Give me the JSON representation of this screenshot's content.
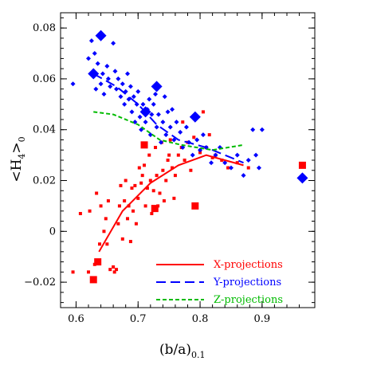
{
  "chart_data": {
    "type": "scatter",
    "xlabel": "(b/a)",
    "xlabel_sub": "0.1",
    "ylabel": "<H",
    "ylabel_sub1": "4",
    "ylabel_close": ">",
    "ylabel_sub2": "0",
    "xlim": [
      0.575,
      0.985
    ],
    "ylim": [
      -0.03,
      0.086
    ],
    "xticks": [
      0.6,
      0.7,
      0.8,
      0.9
    ],
    "xtick_labels": [
      "0.6",
      "0.7",
      "0.8",
      "0.9"
    ],
    "yticks": [
      -0.02,
      0,
      0.02,
      0.04,
      0.06,
      0.08
    ],
    "ytick_labels": [
      "−0.02",
      "0",
      "0.02",
      "0.04",
      "0.06",
      "0.08"
    ],
    "colors": {
      "x": "#ff0000",
      "y": "#0000ff",
      "z": "#00bb00"
    },
    "legend_position": "bottom-right",
    "series": [
      {
        "name": "X-projections",
        "color": "#ff0000",
        "marker": "square",
        "line_style": "solid",
        "line": [
          [
            0.637,
            -0.008
          ],
          [
            0.675,
            0.008
          ],
          [
            0.72,
            0.019
          ],
          [
            0.765,
            0.026
          ],
          [
            0.81,
            0.03
          ],
          [
            0.87,
            0.026
          ]
        ],
        "points": [
          [
            0.595,
            -0.016
          ],
          [
            0.607,
            0.007
          ],
          [
            0.62,
            -0.016
          ],
          [
            0.622,
            0.008
          ],
          [
            0.63,
            -0.013
          ],
          [
            0.633,
            0.015
          ],
          [
            0.638,
            -0.005
          ],
          [
            0.64,
            0.01
          ],
          [
            0.645,
            0.0
          ],
          [
            0.648,
            0.005
          ],
          [
            0.65,
            -0.005
          ],
          [
            0.652,
            0.012
          ],
          [
            0.655,
            -0.015
          ],
          [
            0.66,
            -0.014
          ],
          [
            0.662,
            -0.016
          ],
          [
            0.665,
            -0.015
          ],
          [
            0.668,
            0.003
          ],
          [
            0.67,
            0.01
          ],
          [
            0.672,
            0.018
          ],
          [
            0.675,
            -0.003
          ],
          [
            0.678,
            0.012
          ],
          [
            0.68,
            0.02
          ],
          [
            0.683,
            0.005
          ],
          [
            0.685,
            0.01
          ],
          [
            0.688,
            -0.004
          ],
          [
            0.69,
            0.017
          ],
          [
            0.692,
            0.008
          ],
          [
            0.695,
            0.018
          ],
          [
            0.697,
            0.003
          ],
          [
            0.7,
            0.013
          ],
          [
            0.702,
            0.025
          ],
          [
            0.705,
            0.019
          ],
          [
            0.707,
            0.022
          ],
          [
            0.71,
            0.026
          ],
          [
            0.712,
            0.01
          ],
          [
            0.715,
            0.017
          ],
          [
            0.718,
            0.03
          ],
          [
            0.72,
            0.02
          ],
          [
            0.722,
            0.007
          ],
          [
            0.725,
            0.016
          ],
          [
            0.728,
            0.033
          ],
          [
            0.73,
            0.022
          ],
          [
            0.732,
            0.01
          ],
          [
            0.735,
            0.015
          ],
          [
            0.738,
            0.035
          ],
          [
            0.74,
            0.024
          ],
          [
            0.742,
            0.012
          ],
          [
            0.745,
            0.02
          ],
          [
            0.748,
            0.028
          ],
          [
            0.75,
            0.03
          ],
          [
            0.752,
            0.036
          ],
          [
            0.755,
            0.025
          ],
          [
            0.758,
            0.013
          ],
          [
            0.76,
            0.022
          ],
          [
            0.765,
            0.03
          ],
          [
            0.77,
            0.033
          ],
          [
            0.772,
            0.043
          ],
          [
            0.775,
            0.028
          ],
          [
            0.78,
            0.035
          ],
          [
            0.785,
            0.024
          ],
          [
            0.79,
            0.037
          ],
          [
            0.8,
            0.031
          ],
          [
            0.805,
            0.047
          ],
          [
            0.81,
            0.033
          ],
          [
            0.815,
            0.038
          ],
          [
            0.82,
            0.029
          ],
          [
            0.825,
            0.03
          ],
          [
            0.835,
            0.028
          ],
          [
            0.845,
            0.025
          ],
          [
            0.86,
            0.027
          ],
          [
            0.878,
            0.025
          ]
        ],
        "big_points": [
          [
            0.628,
            -0.019
          ],
          [
            0.635,
            -0.012
          ],
          [
            0.71,
            0.034
          ],
          [
            0.727,
            0.009
          ],
          [
            0.792,
            0.01
          ],
          [
            0.965,
            0.026
          ]
        ]
      },
      {
        "name": "Y-projections",
        "color": "#0000ff",
        "marker": "diamond",
        "line_style": "dashed",
        "line": [
          [
            0.628,
            0.062
          ],
          [
            0.665,
            0.057
          ],
          [
            0.7,
            0.05
          ],
          [
            0.73,
            0.042
          ],
          [
            0.765,
            0.036
          ],
          [
            0.81,
            0.033
          ],
          [
            0.87,
            0.027
          ]
        ],
        "points": [
          [
            0.595,
            0.058
          ],
          [
            0.62,
            0.068
          ],
          [
            0.625,
            0.075
          ],
          [
            0.63,
            0.07
          ],
          [
            0.632,
            0.056
          ],
          [
            0.635,
            0.066
          ],
          [
            0.64,
            0.058
          ],
          [
            0.643,
            0.062
          ],
          [
            0.645,
            0.054
          ],
          [
            0.65,
            0.065
          ],
          [
            0.652,
            0.06
          ],
          [
            0.655,
            0.057
          ],
          [
            0.66,
            0.074
          ],
          [
            0.663,
            0.063
          ],
          [
            0.665,
            0.056
          ],
          [
            0.668,
            0.06
          ],
          [
            0.672,
            0.053
          ],
          [
            0.675,
            0.058
          ],
          [
            0.678,
            0.05
          ],
          [
            0.68,
            0.055
          ],
          [
            0.683,
            0.062
          ],
          [
            0.685,
            0.052
          ],
          [
            0.688,
            0.057
          ],
          [
            0.69,
            0.047
          ],
          [
            0.693,
            0.053
          ],
          [
            0.695,
            0.043
          ],
          [
            0.698,
            0.05
          ],
          [
            0.7,
            0.055
          ],
          [
            0.703,
            0.045
          ],
          [
            0.705,
            0.04
          ],
          [
            0.708,
            0.05
          ],
          [
            0.712,
            0.043
          ],
          [
            0.715,
            0.048
          ],
          [
            0.718,
            0.052
          ],
          [
            0.72,
            0.038
          ],
          [
            0.722,
            0.046
          ],
          [
            0.725,
            0.05
          ],
          [
            0.728,
            0.054
          ],
          [
            0.73,
            0.041
          ],
          [
            0.733,
            0.046
          ],
          [
            0.737,
            0.035
          ],
          [
            0.74,
            0.043
          ],
          [
            0.743,
            0.053
          ],
          [
            0.745,
            0.038
          ],
          [
            0.748,
            0.047
          ],
          [
            0.752,
            0.041
          ],
          [
            0.755,
            0.048
          ],
          [
            0.758,
            0.036
          ],
          [
            0.762,
            0.043
          ],
          [
            0.768,
            0.039
          ],
          [
            0.772,
            0.033
          ],
          [
            0.778,
            0.041
          ],
          [
            0.782,
            0.035
          ],
          [
            0.788,
            0.03
          ],
          [
            0.795,
            0.036
          ],
          [
            0.8,
            0.032
          ],
          [
            0.805,
            0.038
          ],
          [
            0.81,
            0.033
          ],
          [
            0.818,
            0.027
          ],
          [
            0.825,
            0.03
          ],
          [
            0.832,
            0.033
          ],
          [
            0.84,
            0.027
          ],
          [
            0.85,
            0.025
          ],
          [
            0.86,
            0.03
          ],
          [
            0.87,
            0.022
          ],
          [
            0.878,
            0.028
          ],
          [
            0.885,
            0.04
          ],
          [
            0.89,
            0.03
          ],
          [
            0.895,
            0.025
          ],
          [
            0.9,
            0.04
          ]
        ],
        "big_points": [
          [
            0.628,
            0.062
          ],
          [
            0.64,
            0.077
          ],
          [
            0.73,
            0.057
          ],
          [
            0.712,
            0.047
          ],
          [
            0.792,
            0.045
          ],
          [
            0.965,
            0.021
          ]
        ]
      },
      {
        "name": "Z-projections",
        "color": "#00bb00",
        "marker": "none",
        "line_style": "dotted",
        "line": [
          [
            0.628,
            0.047
          ],
          [
            0.66,
            0.046
          ],
          [
            0.7,
            0.042
          ],
          [
            0.735,
            0.036
          ],
          [
            0.77,
            0.034
          ],
          [
            0.82,
            0.032
          ],
          [
            0.87,
            0.034
          ]
        ],
        "points": [],
        "big_points": []
      }
    ]
  }
}
